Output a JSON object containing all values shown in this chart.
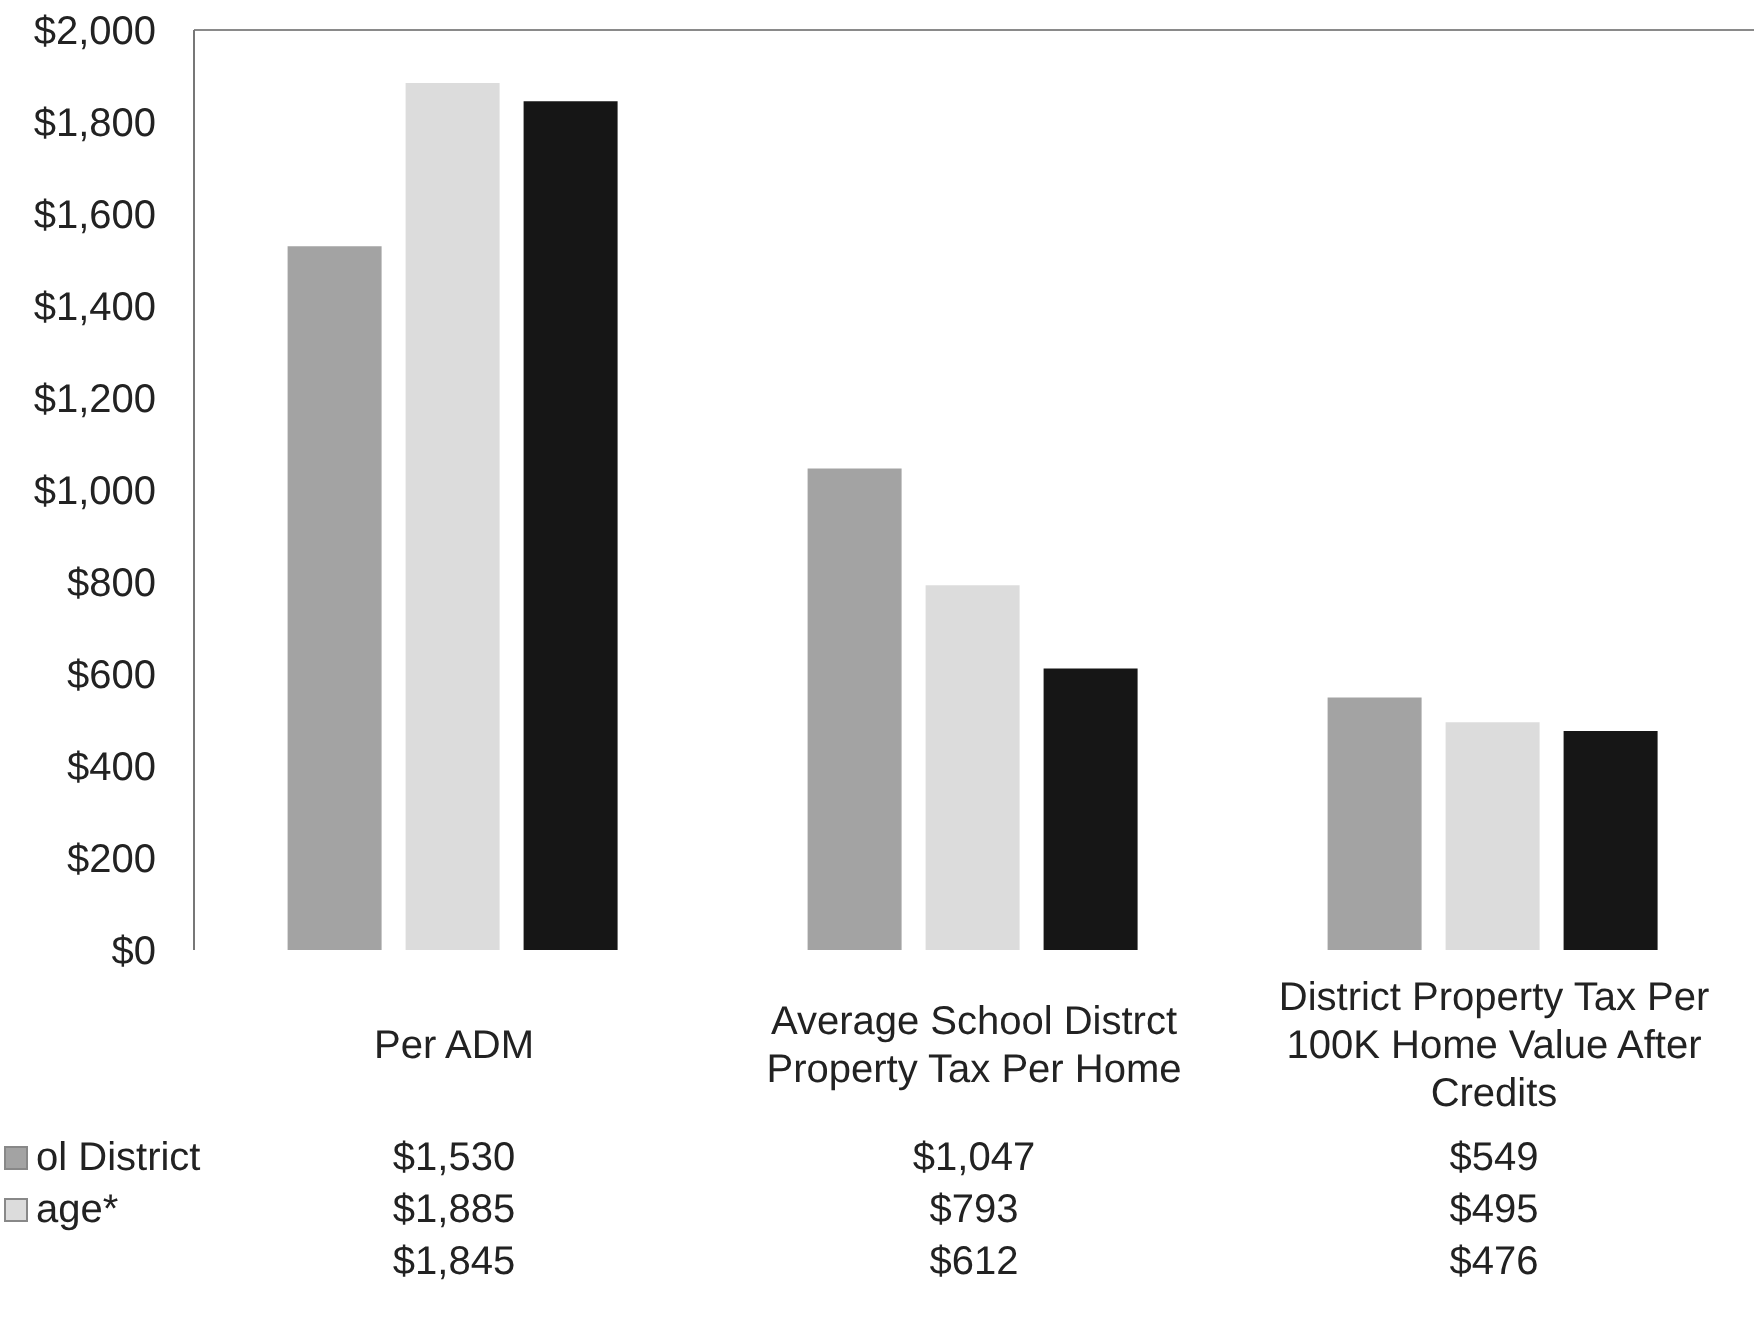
{
  "chart_data": {
    "type": "bar",
    "categories": [
      "Per ADM",
      "Average School Distrct Property Tax Per Home",
      "District Property Tax Per 100K Home Value After Credits"
    ],
    "series": [
      {
        "name": "ol District",
        "color": "#a3a3a3",
        "values": [
          1530,
          1047,
          549
        ],
        "value_labels": [
          "$1,530",
          "$1,047",
          "$549"
        ]
      },
      {
        "name": "age*",
        "color": "#dcdcdc",
        "values": [
          1885,
          793,
          495
        ],
        "value_labels": [
          "$1,885",
          "$793",
          "$495"
        ]
      },
      {
        "color": "#161616",
        "values": [
          1845,
          612,
          476
        ],
        "value_labels": [
          "$1,845",
          "$612",
          "$476"
        ]
      }
    ],
    "ylim": [
      0,
      2000
    ],
    "yticks": [
      {
        "value": 0,
        "label": "$0"
      },
      {
        "value": 200,
        "label": "$200"
      },
      {
        "value": 400,
        "label": "$400"
      },
      {
        "value": 600,
        "label": "$600"
      },
      {
        "value": 800,
        "label": "$800"
      },
      {
        "value": 1000,
        "label": "$1,000"
      },
      {
        "value": 1200,
        "label": "$1,200"
      },
      {
        "value": 1400,
        "label": "$1,400"
      },
      {
        "value": 1600,
        "label": "$1,600"
      },
      {
        "value": 1800,
        "label": "$1,800"
      },
      {
        "value": 2000,
        "label": "$2,000"
      }
    ],
    "legend": "bottom left"
  }
}
